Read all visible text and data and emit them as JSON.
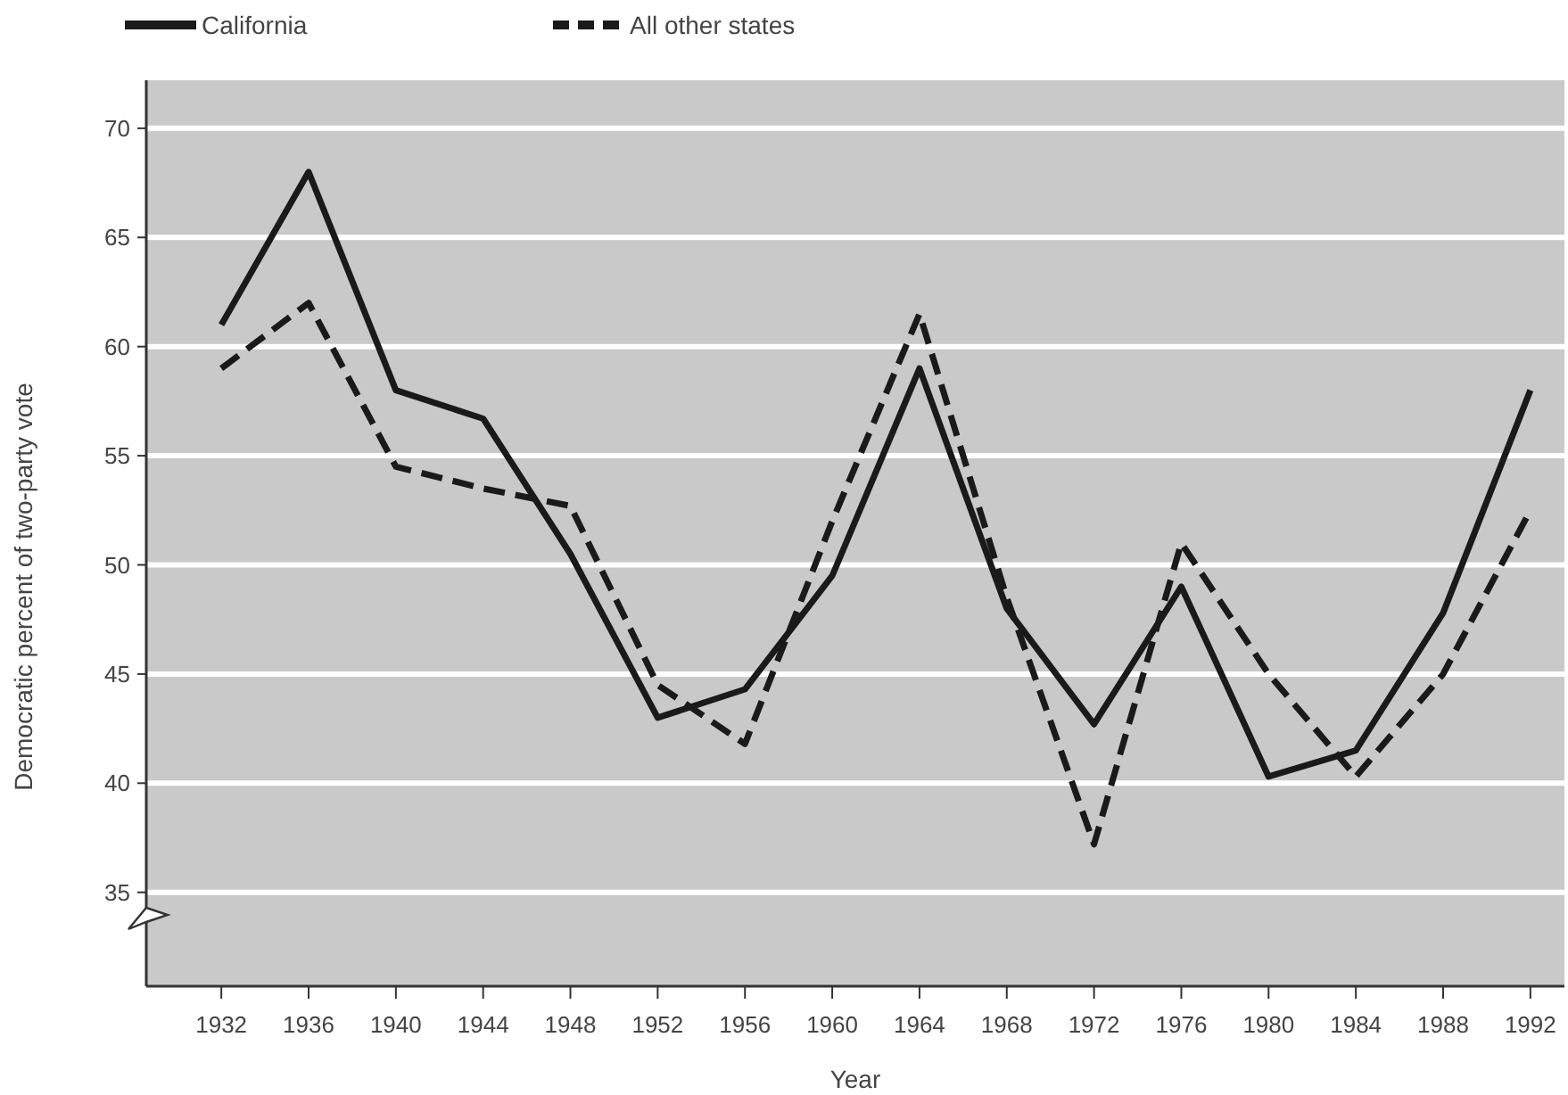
{
  "chart_data": {
    "type": "line",
    "xlabel": "Year",
    "ylabel": "Democratic percent of two-party vote",
    "categories": [
      "1932",
      "1936",
      "1940",
      "1944",
      "1948",
      "1952",
      "1956",
      "1960",
      "1964",
      "1968",
      "1972",
      "1976",
      "1980",
      "1984",
      "1988",
      "1992"
    ],
    "series": [
      {
        "name": "California",
        "color": "#1a1a1a",
        "line_style": "solid",
        "values": [
          61,
          68,
          58,
          56.7,
          50.5,
          43,
          44.3,
          49.5,
          59,
          48,
          42.7,
          49,
          40.3,
          41.5,
          47.8,
          58
        ]
      },
      {
        "name": "All other states",
        "color": "#1a1a1a",
        "line_style": "dashed",
        "values": [
          59,
          62,
          54.5,
          53.5,
          52.7,
          44.5,
          41.8,
          52,
          61.5,
          48.5,
          37.2,
          51,
          45,
          40.3,
          45,
          52.5
        ]
      }
    ],
    "ylim": [
      30.7,
      72.2
    ],
    "yticks": [
      35,
      40,
      45,
      50,
      55,
      60,
      65,
      70
    ],
    "grid": "y",
    "legend": "top left",
    "marker": "none"
  }
}
